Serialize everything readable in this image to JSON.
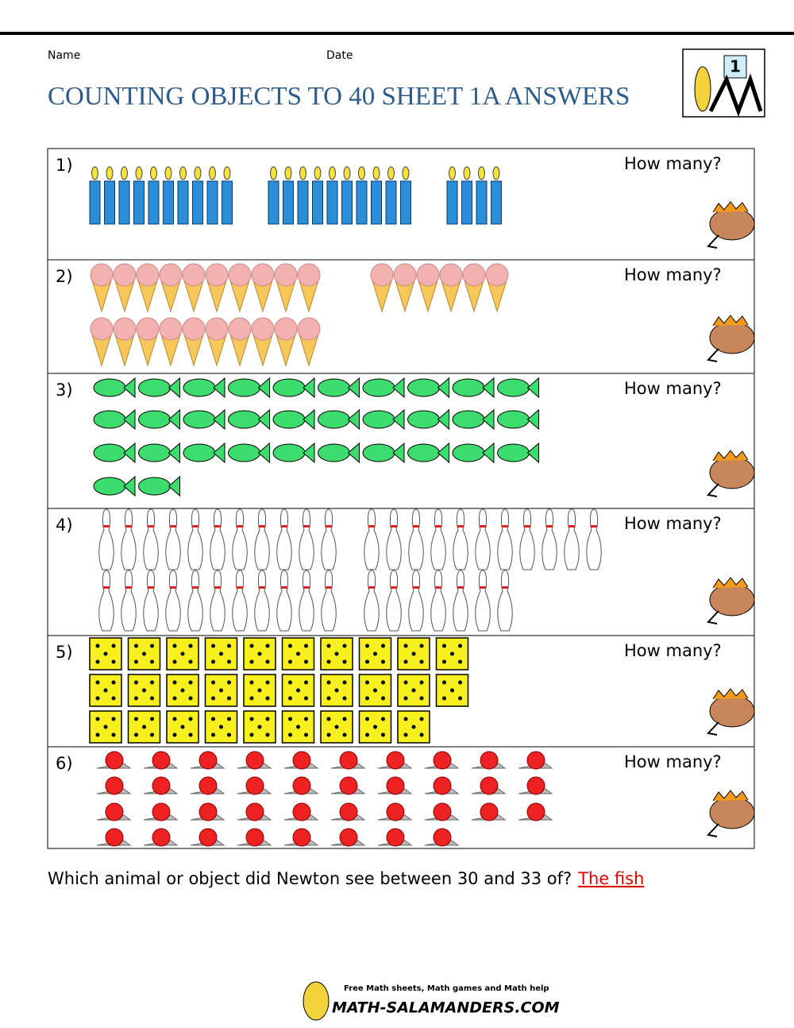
{
  "header": {
    "name_label": "Name",
    "date_label": "Date",
    "title": "COUNTING OBJECTS TO 40 SHEET 1A ANSWERS",
    "logo_number": "1"
  },
  "questions": [
    {
      "number": "1)",
      "prompt": "How many?"
    },
    {
      "number": "2)",
      "prompt": "How many?"
    },
    {
      "number": "3)",
      "prompt": "How many?"
    },
    {
      "number": "4)",
      "prompt": "How many?"
    },
    {
      "number": "5)",
      "prompt": "How many?"
    },
    {
      "number": "6)",
      "prompt": "How many?"
    }
  ],
  "final_question": {
    "text": "Which animal or object did Newton see between 30 and 33 of?",
    "answer": "The fish"
  },
  "footer": {
    "tagline": "Free Math sheets, Math games and Math help",
    "site": "MATH-SALAMANDERS.COM"
  }
}
